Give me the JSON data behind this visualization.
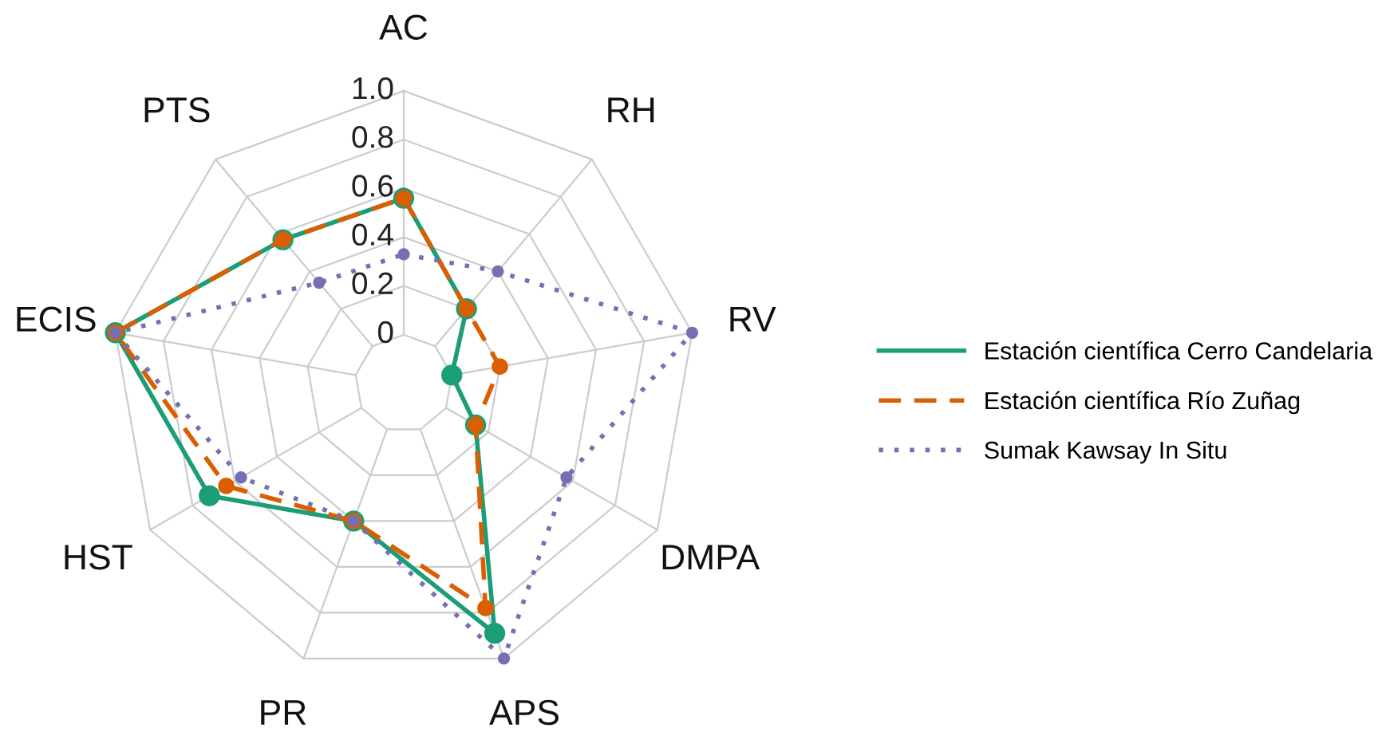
{
  "chart_data": {
    "type": "radar",
    "categories": [
      "AC",
      "RH",
      "RV",
      "DMPA",
      "APS",
      "PR",
      "HST",
      "ECIS",
      "PTS"
    ],
    "ylim": [
      -0.2,
      1
    ],
    "yticks": [
      0,
      0.2,
      0.4,
      0.6,
      0.8,
      {
        "value": 1,
        "label": "1.0"
      }
    ],
    "grid": true,
    "legend": "right",
    "marker": "circle",
    "series": [
      {
        "name": "Estación científica Cerro Candelaria",
        "color": "#1b9e77",
        "line_style": "solid",
        "values": [
          0.56,
          0.2,
          0,
          0.14,
          0.89,
          0.4,
          0.72,
          1,
          0.57
        ]
      },
      {
        "name": "Estación científica Río Zuñag",
        "color": "#d95f02",
        "line_style": "dashed",
        "values": [
          0.56,
          0.2,
          0.2,
          0.14,
          0.78,
          0.4,
          0.64,
          1,
          0.57
        ]
      },
      {
        "name": "Sumak Kawsay In Situ",
        "color": "#7570b3",
        "line_style": "dotted",
        "values": [
          0.33,
          0.4,
          1,
          0.57,
          1,
          0.4,
          0.57,
          1,
          0.34
        ]
      }
    ]
  }
}
